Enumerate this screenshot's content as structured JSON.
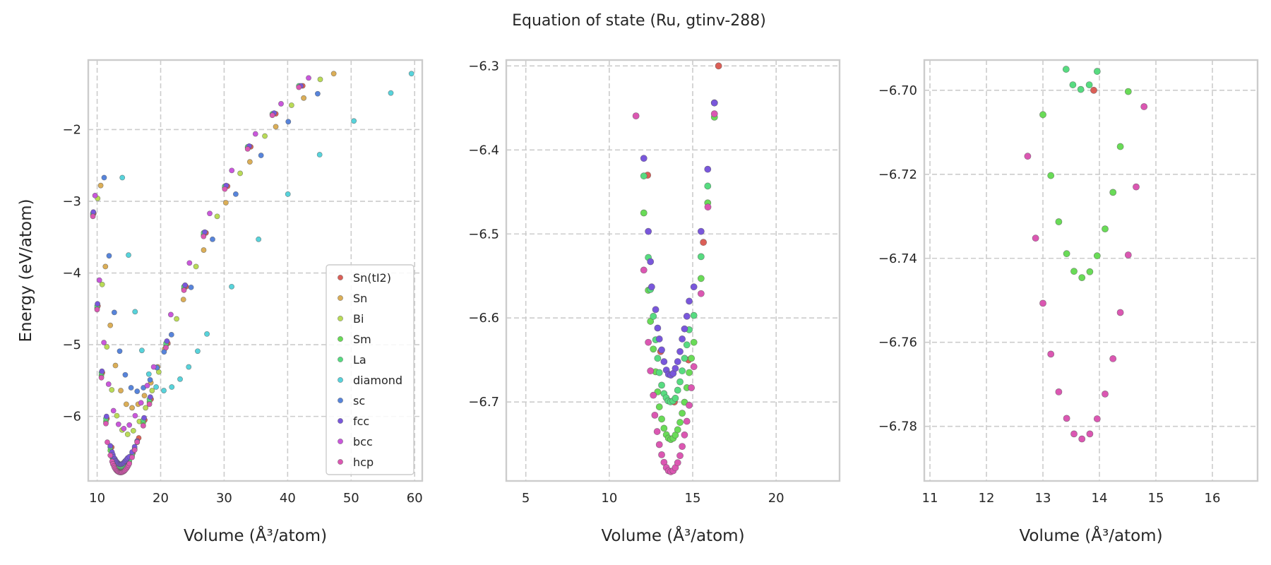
{
  "chart_data": {
    "type": "scatter",
    "title": "Equation of state (Ru, gtinv-288)",
    "legend_placement": "lower-right (first panel)",
    "grid": true,
    "series": [
      {
        "name": "Sn(tI2)",
        "color": "#db5f57",
        "x": [
          9.47,
          10.13,
          10.83,
          11.55,
          12.3,
          13.08,
          13.9,
          14.75,
          15.64,
          16.55,
          17.51,
          18.5,
          21.14,
          24.02,
          27.15,
          30.54,
          34.19,
          38.14,
          42.38
        ],
        "y": [
          -3.17,
          -4.46,
          -5.39,
          -6.03,
          -6.43,
          -6.64,
          -6.7,
          -6.65,
          -6.51,
          -6.3,
          -6.05,
          -5.76,
          -4.98,
          -4.19,
          -3.44,
          -2.79,
          -2.24,
          -1.78,
          -1.39
        ]
      },
      {
        "name": "Sn",
        "color": "#dbae57",
        "x": [
          10.56,
          11.3,
          12.07,
          12.88,
          13.72,
          14.59,
          15.5,
          16.45,
          17.44,
          18.46,
          19.53,
          20.63,
          23.58,
          26.78,
          30.27,
          34.05,
          38.13,
          42.53,
          47.26
        ],
        "y": [
          -2.78,
          -3.91,
          -4.73,
          -5.29,
          -5.64,
          -5.83,
          -5.88,
          -5.83,
          -5.71,
          -5.53,
          -5.31,
          -5.06,
          -4.37,
          -3.68,
          -3.02,
          -2.45,
          -1.96,
          -1.56,
          -1.22
        ]
      },
      {
        "name": "Bi",
        "color": "#b9db57",
        "x": [
          10.08,
          10.79,
          11.53,
          12.3,
          13.1,
          13.93,
          14.8,
          15.7,
          16.65,
          17.63,
          18.65,
          19.7,
          22.51,
          25.57,
          28.9,
          32.52,
          36.41,
          40.61,
          45.13
        ],
        "y": [
          -2.96,
          -4.16,
          -5.03,
          -5.63,
          -5.99,
          -6.19,
          -6.25,
          -6.2,
          -6.07,
          -5.88,
          -5.64,
          -5.38,
          -4.64,
          -3.91,
          -3.21,
          -2.61,
          -2.09,
          -1.66,
          -1.3
        ]
      },
      {
        "name": "Sm",
        "color": "#69db57",
        "x": [
          9.33,
          9.99,
          10.67,
          11.38,
          12.07,
          12.34,
          12.47,
          12.64,
          12.78,
          12.9,
          13.0,
          13.14,
          13.28,
          13.42,
          13.55,
          13.69,
          13.83,
          13.96,
          14.1,
          14.24,
          14.37,
          14.51,
          14.65,
          14.79,
          14.92,
          15.07,
          15.5,
          15.9,
          16.3,
          17.26,
          18.23,
          20.84,
          23.67,
          26.76,
          30.1,
          33.7,
          37.59,
          41.77
        ],
        "y": [
          -3.19,
          -4.49,
          -5.43,
          -6.07,
          -6.475,
          -6.567,
          -6.604,
          -6.637,
          -6.664,
          -6.688,
          -6.7058,
          -6.7203,
          -6.7313,
          -6.7389,
          -6.7431,
          -6.7446,
          -6.7432,
          -6.7394,
          -6.733,
          -6.7243,
          -6.7134,
          -6.7003,
          -6.683,
          -6.665,
          -6.648,
          -6.629,
          -6.553,
          -6.463,
          -6.361,
          -6.09,
          -5.8,
          -5.01,
          -4.22,
          -3.47,
          -2.81,
          -2.25,
          -1.79,
          -1.4
        ]
      },
      {
        "name": "La",
        "color": "#57db80",
        "x": [
          9.33,
          9.99,
          10.67,
          11.38,
          12.07,
          12.34,
          12.47,
          12.64,
          12.78,
          12.9,
          13.0,
          13.14,
          13.28,
          13.41,
          13.53,
          13.67,
          13.82,
          13.96,
          14.1,
          14.24,
          14.37,
          14.51,
          14.65,
          14.79,
          15.07,
          15.5,
          15.9,
          16.3,
          17.26,
          18.23,
          20.84,
          23.67,
          26.76,
          30.1,
          33.7,
          37.59,
          41.77
        ],
        "y": [
          -3.17,
          -4.46,
          -5.39,
          -6.03,
          -6.431,
          -6.528,
          -6.566,
          -6.598,
          -6.626,
          -6.648,
          -6.665,
          -6.68,
          -6.69,
          -6.695,
          -6.6987,
          -6.6998,
          -6.6987,
          -6.6955,
          -6.686,
          -6.676,
          -6.663,
          -6.648,
          -6.632,
          -6.614,
          -6.597,
          -6.527,
          -6.443,
          -6.344,
          -6.05,
          -5.76,
          -4.98,
          -4.19,
          -3.44,
          -2.79,
          -2.24,
          -1.78,
          -1.39
        ]
      },
      {
        "name": "diamond",
        "color": "#57d3db",
        "x": [
          13.96,
          14.94,
          15.97,
          17.04,
          18.14,
          19.29,
          20.5,
          21.75,
          23.06,
          24.42,
          25.83,
          27.29,
          31.18,
          35.42,
          40.04,
          45.04,
          50.43,
          56.25,
          59.5
        ],
        "y": [
          -2.67,
          -3.75,
          -4.54,
          -5.08,
          -5.41,
          -5.59,
          -5.64,
          -5.59,
          -5.48,
          -5.31,
          -5.09,
          -4.85,
          -4.19,
          -3.53,
          -2.9,
          -2.35,
          -1.88,
          -1.49,
          -1.22
        ]
      },
      {
        "name": "sc",
        "color": "#5784db",
        "x": [
          11.1,
          11.88,
          12.7,
          13.55,
          14.43,
          15.34,
          16.3,
          17.29,
          18.34,
          19.41,
          20.54,
          21.7,
          24.79,
          28.17,
          31.83,
          35.81,
          40.1,
          44.73
        ],
        "y": [
          -2.67,
          -3.76,
          -4.55,
          -5.09,
          -5.42,
          -5.6,
          -5.65,
          -5.6,
          -5.49,
          -5.32,
          -5.1,
          -4.86,
          -4.2,
          -3.53,
          -2.9,
          -2.36,
          -1.89,
          -1.5
        ]
      },
      {
        "name": "fcc",
        "color": "#7957db",
        "x": [
          9.4,
          10.06,
          10.75,
          11.47,
          12.07,
          12.34,
          12.47,
          12.54,
          12.78,
          12.9,
          13.0,
          13.14,
          13.28,
          13.42,
          13.55,
          13.69,
          13.83,
          13.96,
          14.1,
          14.24,
          14.37,
          14.51,
          14.65,
          14.79,
          15.07,
          15.5,
          15.9,
          16.3,
          17.39,
          18.37,
          20.99,
          23.85,
          26.95,
          30.32,
          33.95,
          37.87,
          42.08
        ],
        "y": [
          -3.15,
          -4.43,
          -5.37,
          -6.0,
          -6.41,
          -6.497,
          -6.533,
          -6.563,
          -6.59,
          -6.612,
          -6.625,
          -6.638,
          -6.652,
          -6.662,
          -6.667,
          -6.668,
          -6.666,
          -6.66,
          -6.652,
          -6.64,
          -6.625,
          -6.613,
          -6.598,
          -6.58,
          -6.563,
          -6.497,
          -6.423,
          -6.344,
          -6.02,
          -5.73,
          -4.95,
          -4.17,
          -3.43,
          -2.78,
          -2.23,
          -1.77,
          -1.39
        ]
      },
      {
        "name": "bcc",
        "color": "#c957db",
        "x": [
          9.67,
          10.35,
          11.06,
          11.8,
          12.57,
          13.36,
          14.2,
          15.07,
          15.98,
          16.91,
          17.89,
          18.9,
          21.6,
          24.54,
          27.73,
          31.2,
          34.93,
          38.96,
          43.3
        ],
        "y": [
          -2.92,
          -4.1,
          -4.97,
          -5.55,
          -5.92,
          -6.11,
          -6.17,
          -6.12,
          -5.99,
          -5.81,
          -5.57,
          -5.31,
          -4.58,
          -3.86,
          -3.17,
          -2.57,
          -2.06,
          -1.64,
          -1.28
        ]
      },
      {
        "name": "hcp",
        "color": "#db57b2",
        "x": [
          9.33,
          9.99,
          10.67,
          11.38,
          11.6,
          12.07,
          12.34,
          12.47,
          12.64,
          12.73,
          12.87,
          13.0,
          13.14,
          13.28,
          13.42,
          13.55,
          13.69,
          13.83,
          13.96,
          14.1,
          14.24,
          14.37,
          14.51,
          14.65,
          14.79,
          14.92,
          15.07,
          15.5,
          15.91,
          16.3,
          17.26,
          18.23,
          20.84,
          23.67,
          26.76,
          30.1,
          33.7,
          37.59,
          41.77
        ],
        "y": [
          -3.21,
          -4.51,
          -5.46,
          -6.1,
          -6.3595,
          -6.543,
          -6.629,
          -6.663,
          -6.692,
          -6.7157,
          -6.7352,
          -6.7507,
          -6.7628,
          -6.7718,
          -6.7781,
          -6.7818,
          -6.783,
          -6.7818,
          -6.7782,
          -6.7723,
          -6.7639,
          -6.7529,
          -6.7392,
          -6.723,
          -6.7039,
          -6.683,
          -6.658,
          -6.571,
          -6.468,
          -6.357,
          -6.13,
          -5.83,
          -5.04,
          -4.24,
          -3.49,
          -2.83,
          -2.27,
          -1.8,
          -1.41
        ]
      }
    ],
    "panels": [
      {
        "xlabel": "Volume (Å³/atom)",
        "ylabel": "Energy (eV/atom)",
        "xlim": [
          8.6,
          61.2
        ],
        "ylim": [
          -6.9,
          -1.03
        ],
        "xticks": [
          10,
          20,
          30,
          40,
          50,
          60
        ],
        "xtick_labels": [
          "10",
          "20",
          "30",
          "40",
          "50",
          "60"
        ],
        "yticks": [
          -2,
          -3,
          -4,
          -5,
          -6
        ],
        "ytick_labels": [
          "−2",
          "−3",
          "−4",
          "−5",
          "−6"
        ],
        "legend": true
      },
      {
        "xlabel": "Volume (Å³/atom)",
        "ylabel": "",
        "xlim": [
          3.83,
          23.8
        ],
        "ylim": [
          -6.794,
          -6.293
        ],
        "xticks": [
          5,
          10,
          15,
          20
        ],
        "xtick_labels": [
          "5",
          "10",
          "15",
          "20"
        ],
        "yticks": [
          -6.3,
          -6.4,
          -6.5,
          -6.6,
          -6.7
        ],
        "ytick_labels": [
          "−6.3",
          "−6.4",
          "−6.5",
          "−6.6",
          "−6.7"
        ],
        "legend": false
      },
      {
        "xlabel": "Volume (Å³/atom)",
        "ylabel": "",
        "xlim": [
          10.9,
          16.8
        ],
        "ylim": [
          -6.793,
          -6.6928
        ],
        "xticks": [
          11,
          12,
          13,
          14,
          15,
          16
        ],
        "xtick_labels": [
          "11",
          "12",
          "13",
          "14",
          "15",
          "16"
        ],
        "yticks": [
          -6.7,
          -6.72,
          -6.74,
          -6.76,
          -6.78
        ],
        "ytick_labels": [
          "−6.70",
          "−6.72",
          "−6.74",
          "−6.76",
          "−6.78"
        ],
        "legend": false
      }
    ]
  }
}
